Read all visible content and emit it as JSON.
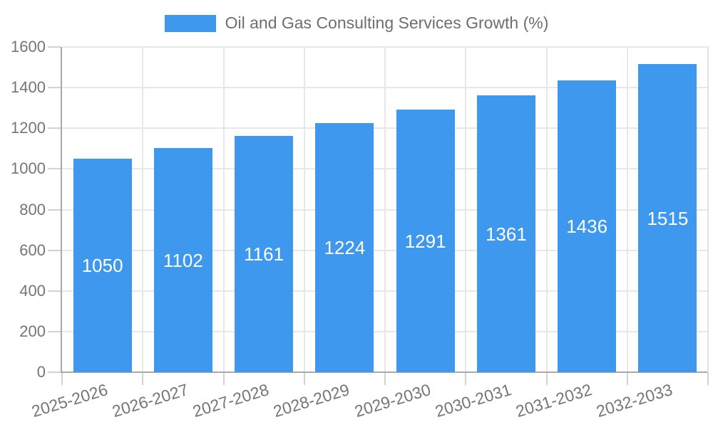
{
  "chart_data": {
    "type": "bar",
    "title": "Oil and Gas Consulting Services Growth (%)",
    "categories": [
      "2025-2026",
      "2026-2027",
      "2027-2028",
      "2028-2029",
      "2029-2030",
      "2030-2031",
      "2031-2032",
      "2032-2033"
    ],
    "values": [
      1050,
      1102,
      1161,
      1224,
      1291,
      1361,
      1436,
      1515
    ],
    "xlabel": "",
    "ylabel": "",
    "ylim": [
      0,
      1600
    ],
    "yticks": [
      0,
      200,
      400,
      600,
      800,
      1000,
      1200,
      1400,
      1600
    ],
    "grid": true,
    "legend_position": "top-center",
    "x_tick_rotation_deg": -17,
    "bar_color": "#3e98ed",
    "value_label_color": "#ffffff"
  }
}
